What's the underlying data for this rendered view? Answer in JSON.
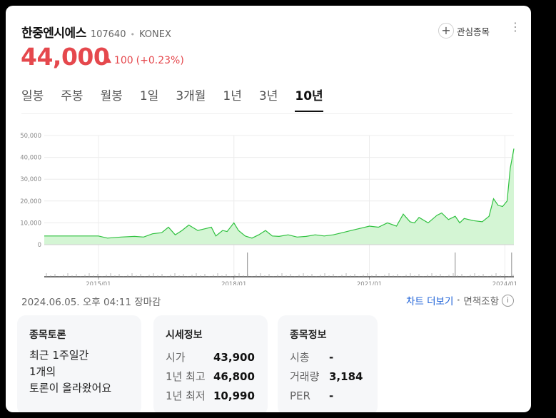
{
  "header": {
    "name": "한중엔시에스",
    "code": "107640",
    "separator": "•",
    "market": "KONEX",
    "favorite_label": "관심종목",
    "more_icon": "⋮"
  },
  "price": {
    "current": "44,000",
    "change": "100",
    "change_pct": "(+0.23%)",
    "color": "#e5484d"
  },
  "tabs": [
    {
      "label": "일봉",
      "active": false
    },
    {
      "label": "주봉",
      "active": false
    },
    {
      "label": "월봉",
      "active": false
    },
    {
      "label": "1일",
      "active": false
    },
    {
      "label": "3개월",
      "active": false
    },
    {
      "label": "1년",
      "active": false
    },
    {
      "label": "3년",
      "active": false
    },
    {
      "label": "10년",
      "active": true
    }
  ],
  "chart_data": {
    "type": "area",
    "y_ticks": [
      "50,000",
      "40,000",
      "30,000",
      "20,000",
      "10,000",
      "0"
    ],
    "x_ticks": [
      "2015/01",
      "2018/01",
      "2021/01",
      "2024/01"
    ],
    "ylim": [
      0,
      50000
    ],
    "xlim": [
      2013.8,
      2024.2
    ],
    "x": [
      2013.8,
      2014.2,
      2014.6,
      2015.0,
      2015.2,
      2015.5,
      2015.8,
      2016.0,
      2016.2,
      2016.4,
      2016.55,
      2016.7,
      2016.85,
      2017.0,
      2017.2,
      2017.4,
      2017.5,
      2017.6,
      2017.75,
      2017.85,
      2018.0,
      2018.1,
      2018.25,
      2018.4,
      2018.55,
      2018.7,
      2018.85,
      2019.0,
      2019.2,
      2019.4,
      2019.6,
      2019.8,
      2020.0,
      2020.2,
      2020.4,
      2020.6,
      2020.8,
      2021.0,
      2021.2,
      2021.4,
      2021.6,
      2021.75,
      2021.9,
      2022.0,
      2022.1,
      2022.3,
      2022.5,
      2022.6,
      2022.75,
      2022.9,
      2023.0,
      2023.1,
      2023.3,
      2023.5,
      2023.65,
      2023.75,
      2023.85,
      2023.95,
      2024.05,
      2024.12,
      2024.2
    ],
    "y": [
      4000,
      4000,
      4000,
      4000,
      3000,
      3500,
      3800,
      3500,
      5000,
      5500,
      8000,
      4500,
      6500,
      9000,
      6500,
      7500,
      8000,
      4000,
      6500,
      6000,
      10000,
      6500,
      4000,
      3000,
      4500,
      6500,
      4000,
      3800,
      4500,
      3500,
      3800,
      4500,
      4000,
      4500,
      5500,
      6500,
      7500,
      8500,
      8000,
      10000,
      8500,
      14000,
      10500,
      10000,
      12500,
      10000,
      13500,
      14500,
      11500,
      13000,
      10000,
      12000,
      11000,
      10500,
      13000,
      21000,
      18000,
      17500,
      20000,
      35000,
      44000
    ],
    "volume_spikes": [
      2018.3,
      2022.9,
      2024.15
    ],
    "grid": true,
    "fill_color": "#d4f5d4",
    "line_color": "#2fc13f"
  },
  "footer": {
    "timestamp": "2024.06.05. 오후 04:11 장마감",
    "chart_link": "차트 더보기",
    "disclaimer": "면책조항",
    "info_icon": "i"
  },
  "discussion": {
    "title": "종목토론",
    "line1": "최근 1주일간",
    "line2": "1개의",
    "line3": "토론이 올라왔어요"
  },
  "market_info": {
    "title": "시세정보",
    "rows": [
      {
        "label": "시가",
        "value": "43,900"
      },
      {
        "label": "1년 최고",
        "value": "46,800"
      },
      {
        "label": "1년 최저",
        "value": "10,990"
      }
    ]
  },
  "stock_info": {
    "title": "종목정보",
    "rows": [
      {
        "label": "시총",
        "value": "-"
      },
      {
        "label": "거래량",
        "value": "3,184"
      },
      {
        "label": "PER",
        "value": "-"
      }
    ]
  }
}
